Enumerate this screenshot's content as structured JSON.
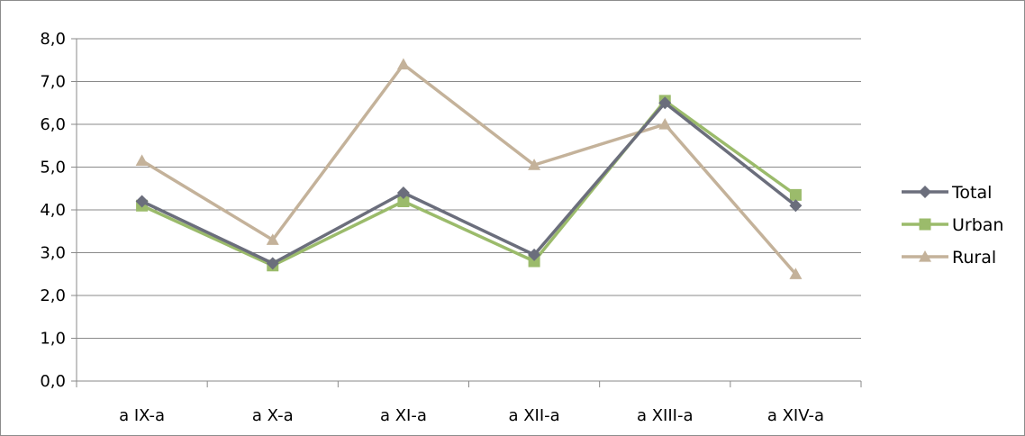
{
  "chart_data": {
    "type": "line",
    "title": "",
    "xlabel": "",
    "ylabel": "",
    "categories": [
      "a IX-a",
      "a X-a",
      "a XI-a",
      "a XII-a",
      "a XIII-a",
      "a XIV-a"
    ],
    "yticks": [
      "0,0",
      "1,0",
      "2,0",
      "3,0",
      "4,0",
      "5,0",
      "6,0",
      "7,0",
      "8,0"
    ],
    "ylim": [
      0,
      8
    ],
    "grid": true,
    "legend_position": "right",
    "series": [
      {
        "name": "Total",
        "values": [
          4.2,
          2.75,
          4.4,
          2.95,
          6.5,
          4.1
        ],
        "color": "#6b6e7c",
        "marker": "diamond"
      },
      {
        "name": "Urban",
        "values": [
          4.1,
          2.7,
          4.2,
          2.8,
          6.55,
          4.35
        ],
        "color": "#9bbb6b",
        "marker": "square"
      },
      {
        "name": "Rural",
        "values": [
          5.15,
          3.3,
          7.4,
          5.05,
          6.0,
          2.5
        ],
        "color": "#c4b29a",
        "marker": "triangle"
      }
    ]
  }
}
